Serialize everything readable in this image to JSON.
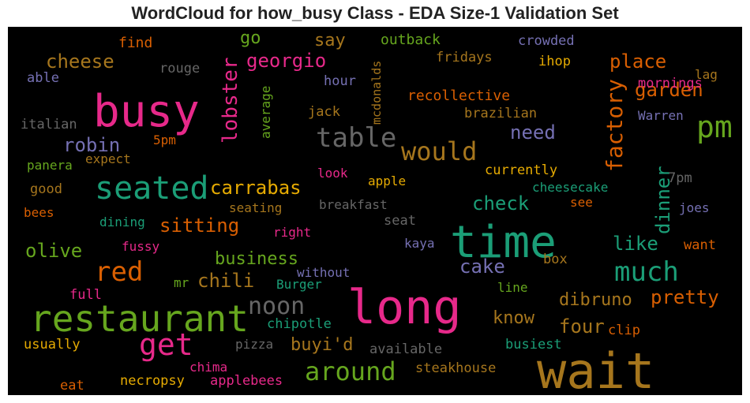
{
  "chart_data": {
    "type": "wordcloud",
    "title": "WordCloud for how_busy Class - EDA Size-1 Validation Set",
    "background": "#000000",
    "palette": "Dark2",
    "words": [
      {
        "text": "wait",
        "color": "#a6761d"
      },
      {
        "text": "long",
        "color": "#e7298a"
      },
      {
        "text": "time",
        "color": "#1b9e77"
      },
      {
        "text": "busy",
        "color": "#e7298a"
      },
      {
        "text": "restaurant",
        "color": "#66a61e"
      },
      {
        "text": "seated",
        "color": "#1b9e77"
      },
      {
        "text": "table",
        "color": "#666666"
      },
      {
        "text": "get",
        "color": "#e7298a"
      },
      {
        "text": "would",
        "color": "#a6761d"
      },
      {
        "text": "pm",
        "color": "#66a61e"
      },
      {
        "text": "red",
        "color": "#d95f02"
      },
      {
        "text": "much",
        "color": "#1b9e77"
      },
      {
        "text": "around",
        "color": "#66a61e"
      },
      {
        "text": "factory",
        "color": "#d95f02"
      },
      {
        "text": "lobster",
        "color": "#e7298a"
      },
      {
        "text": "noon",
        "color": "#666666"
      },
      {
        "text": "dinner",
        "color": "#1b9e77"
      },
      {
        "text": "carrabas",
        "color": "#e6ab02"
      },
      {
        "text": "robin",
        "color": "#7570b3"
      },
      {
        "text": "cheese",
        "color": "#a6761d"
      },
      {
        "text": "georgio",
        "color": "#e7298a"
      },
      {
        "text": "place",
        "color": "#d95f02"
      },
      {
        "text": "garden",
        "color": "#d95f02"
      },
      {
        "text": "chili",
        "color": "#a6761d"
      },
      {
        "text": "pretty",
        "color": "#d95f02"
      },
      {
        "text": "four",
        "color": "#a6761d"
      },
      {
        "text": "dibruno",
        "color": "#a6761d"
      },
      {
        "text": "sitting",
        "color": "#d95f02"
      },
      {
        "text": "business",
        "color": "#66a61e"
      },
      {
        "text": "olive",
        "color": "#66a61e"
      },
      {
        "text": "check",
        "color": "#1b9e77"
      },
      {
        "text": "need",
        "color": "#7570b3"
      },
      {
        "text": "cake",
        "color": "#7570b3"
      },
      {
        "text": "like",
        "color": "#1b9e77"
      },
      {
        "text": "know",
        "color": "#a6761d"
      },
      {
        "text": "buyi'd",
        "color": "#a6761d"
      },
      {
        "text": "go",
        "color": "#66a61e"
      },
      {
        "text": "say",
        "color": "#a6761d"
      },
      {
        "text": "find",
        "color": "#d95f02"
      },
      {
        "text": "outback",
        "color": "#66a61e"
      },
      {
        "text": "crowded",
        "color": "#7570b3"
      },
      {
        "text": "fridays",
        "color": "#a6761d"
      },
      {
        "text": "ihop",
        "color": "#e6ab02"
      },
      {
        "text": "mornings",
        "color": "#e7298a"
      },
      {
        "text": "lag",
        "color": "#a6761d"
      },
      {
        "text": "able",
        "color": "#7570b3"
      },
      {
        "text": "rouge",
        "color": "#666666"
      },
      {
        "text": "hour",
        "color": "#7570b3"
      },
      {
        "text": "average",
        "color": "#66a61e"
      },
      {
        "text": "mcdonalds",
        "color": "#a6761d"
      },
      {
        "text": "recollective",
        "color": "#d95f02"
      },
      {
        "text": "jack",
        "color": "#a6761d"
      },
      {
        "text": "brazilian",
        "color": "#a6761d"
      },
      {
        "text": "Warren",
        "color": "#7570b3"
      },
      {
        "text": "italian",
        "color": "#666666"
      },
      {
        "text": "5pm",
        "color": "#d95f02"
      },
      {
        "text": "expect",
        "color": "#a6761d"
      },
      {
        "text": "panera",
        "color": "#66a61e"
      },
      {
        "text": "currently",
        "color": "#e6ab02"
      },
      {
        "text": "7pm",
        "color": "#666666"
      },
      {
        "text": "look",
        "color": "#e7298a"
      },
      {
        "text": "apple",
        "color": "#e6ab02"
      },
      {
        "text": "cheesecake",
        "color": "#1b9e77"
      },
      {
        "text": "good",
        "color": "#a6761d"
      },
      {
        "text": "bees",
        "color": "#d95f02"
      },
      {
        "text": "seating",
        "color": "#a6761d"
      },
      {
        "text": "breakfast",
        "color": "#666666"
      },
      {
        "text": "see",
        "color": "#d95f02"
      },
      {
        "text": "joes",
        "color": "#7570b3"
      },
      {
        "text": "dining",
        "color": "#1b9e77"
      },
      {
        "text": "seat",
        "color": "#666666"
      },
      {
        "text": "right",
        "color": "#e7298a"
      },
      {
        "text": "fussy",
        "color": "#e7298a"
      },
      {
        "text": "kaya",
        "color": "#7570b3"
      },
      {
        "text": "want",
        "color": "#d95f02"
      },
      {
        "text": "box",
        "color": "#a6761d"
      },
      {
        "text": "without",
        "color": "#7570b3"
      },
      {
        "text": "mr",
        "color": "#66a61e"
      },
      {
        "text": "Burger",
        "color": "#1b9e77"
      },
      {
        "text": "line",
        "color": "#66a61e"
      },
      {
        "text": "full",
        "color": "#e7298a"
      },
      {
        "text": "chipotle",
        "color": "#1b9e77"
      },
      {
        "text": "clip",
        "color": "#d95f02"
      },
      {
        "text": "usually",
        "color": "#e6ab02"
      },
      {
        "text": "pizza",
        "color": "#666666"
      },
      {
        "text": "available",
        "color": "#666666"
      },
      {
        "text": "busiest",
        "color": "#1b9e77"
      },
      {
        "text": "chima",
        "color": "#e7298a"
      },
      {
        "text": "steakhouse",
        "color": "#a6761d"
      },
      {
        "text": "eat",
        "color": "#d95f02"
      },
      {
        "text": "necropsy",
        "color": "#e6ab02"
      },
      {
        "text": "applebees",
        "color": "#e7298a"
      }
    ]
  }
}
